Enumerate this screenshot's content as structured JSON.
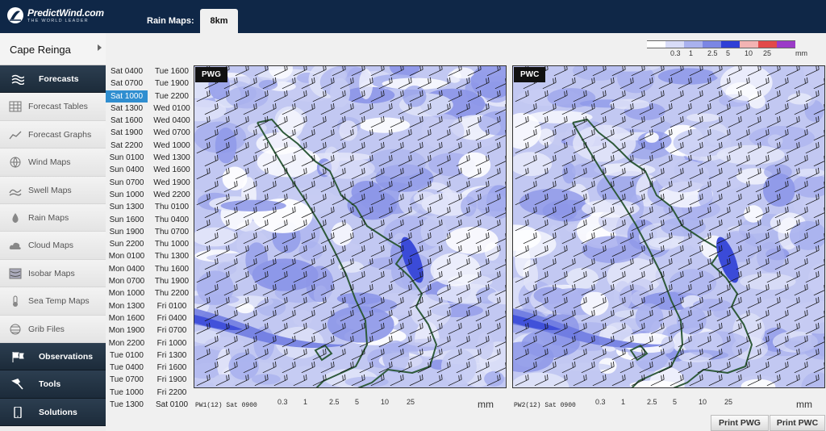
{
  "header": {
    "logo_name": "PredictWind.com",
    "logo_tagline": "THE WORLD LEADER",
    "rain_maps_label": "Rain Maps:",
    "resolution_tab": "8km"
  },
  "sidebar": {
    "location": "Cape Reinga",
    "items": [
      {
        "label": "Forecasts",
        "style": "dark",
        "icon": "forecasts-icon"
      },
      {
        "label": "Forecast Tables",
        "style": "light",
        "icon": "table-icon"
      },
      {
        "label": "Forecast Graphs",
        "style": "light",
        "icon": "graph-icon"
      },
      {
        "label": "Wind Maps",
        "style": "light",
        "icon": "globe-icon"
      },
      {
        "label": "Swell Maps",
        "style": "light",
        "icon": "wave-icon"
      },
      {
        "label": "Rain Maps",
        "style": "light",
        "icon": "raindrop-icon"
      },
      {
        "label": "Cloud Maps",
        "style": "light",
        "icon": "cloud-icon"
      },
      {
        "label": "Isobar Maps",
        "style": "light",
        "icon": "isobar-icon"
      },
      {
        "label": "Sea Temp Maps",
        "style": "light",
        "icon": "thermometer-icon"
      },
      {
        "label": "Grib Files",
        "style": "light",
        "icon": "grib-icon"
      },
      {
        "label": "Observations",
        "style": "dark",
        "icon": "flags-icon"
      },
      {
        "label": "Tools",
        "style": "dark",
        "icon": "hammer-icon"
      },
      {
        "label": "Solutions",
        "style": "dark",
        "icon": "phone-icon"
      }
    ]
  },
  "times": {
    "selected": "Sat 1000",
    "col1": [
      "Sat 0400",
      "Sat 0700",
      "Sat 1000",
      "Sat 1300",
      "Sat 1600",
      "Sat 1900",
      "Sat 2200",
      "Sun 0100",
      "Sun 0400",
      "Sun 0700",
      "Sun 1000",
      "Sun 1300",
      "Sun 1600",
      "Sun 1900",
      "Sun 2200",
      "Mon 0100",
      "Mon 0400",
      "Mon 0700",
      "Mon 1000",
      "Mon 1300",
      "Mon 1600",
      "Mon 1900",
      "Mon 2200",
      "Tue 0100",
      "Tue 0400",
      "Tue 0700",
      "Tue 1000",
      "Tue 1300"
    ],
    "col2": [
      "Tue 1600",
      "Tue 1900",
      "Tue 2200",
      "Wed 0100",
      "Wed 0400",
      "Wed 0700",
      "Wed 1000",
      "Wed 1300",
      "Wed 1600",
      "Wed 1900",
      "Wed 2200",
      "Thu 0100",
      "Thu 0400",
      "Thu 0700",
      "Thu 1000",
      "Thu 1300",
      "Thu 1600",
      "Thu 1900",
      "Thu 2200",
      "Fri 0100",
      "Fri 0400",
      "Fri 0700",
      "Fri 1000",
      "Fri 1300",
      "Fri 1600",
      "Fri 1900",
      "Fri 2200",
      "Sat 0100"
    ]
  },
  "maps": [
    {
      "label": "PWG",
      "footer": "PW1(12) Sat 0900"
    },
    {
      "label": "PWC",
      "footer": "PW2(12) Sat 0900"
    }
  ],
  "legend": {
    "ticks": [
      "0.3",
      "1",
      "2.5",
      "5",
      "10",
      "25"
    ],
    "unit": "mm",
    "colors": [
      "#ffffff",
      "#d8dcf7",
      "#a9b1ee",
      "#7b86e4",
      "#2f3fd6",
      "#f3b3b3",
      "#e24a4a",
      "#9b3bc8"
    ]
  },
  "buttons": {
    "print_pwg": "Print PWG",
    "print_pwc": "Print PWC"
  }
}
